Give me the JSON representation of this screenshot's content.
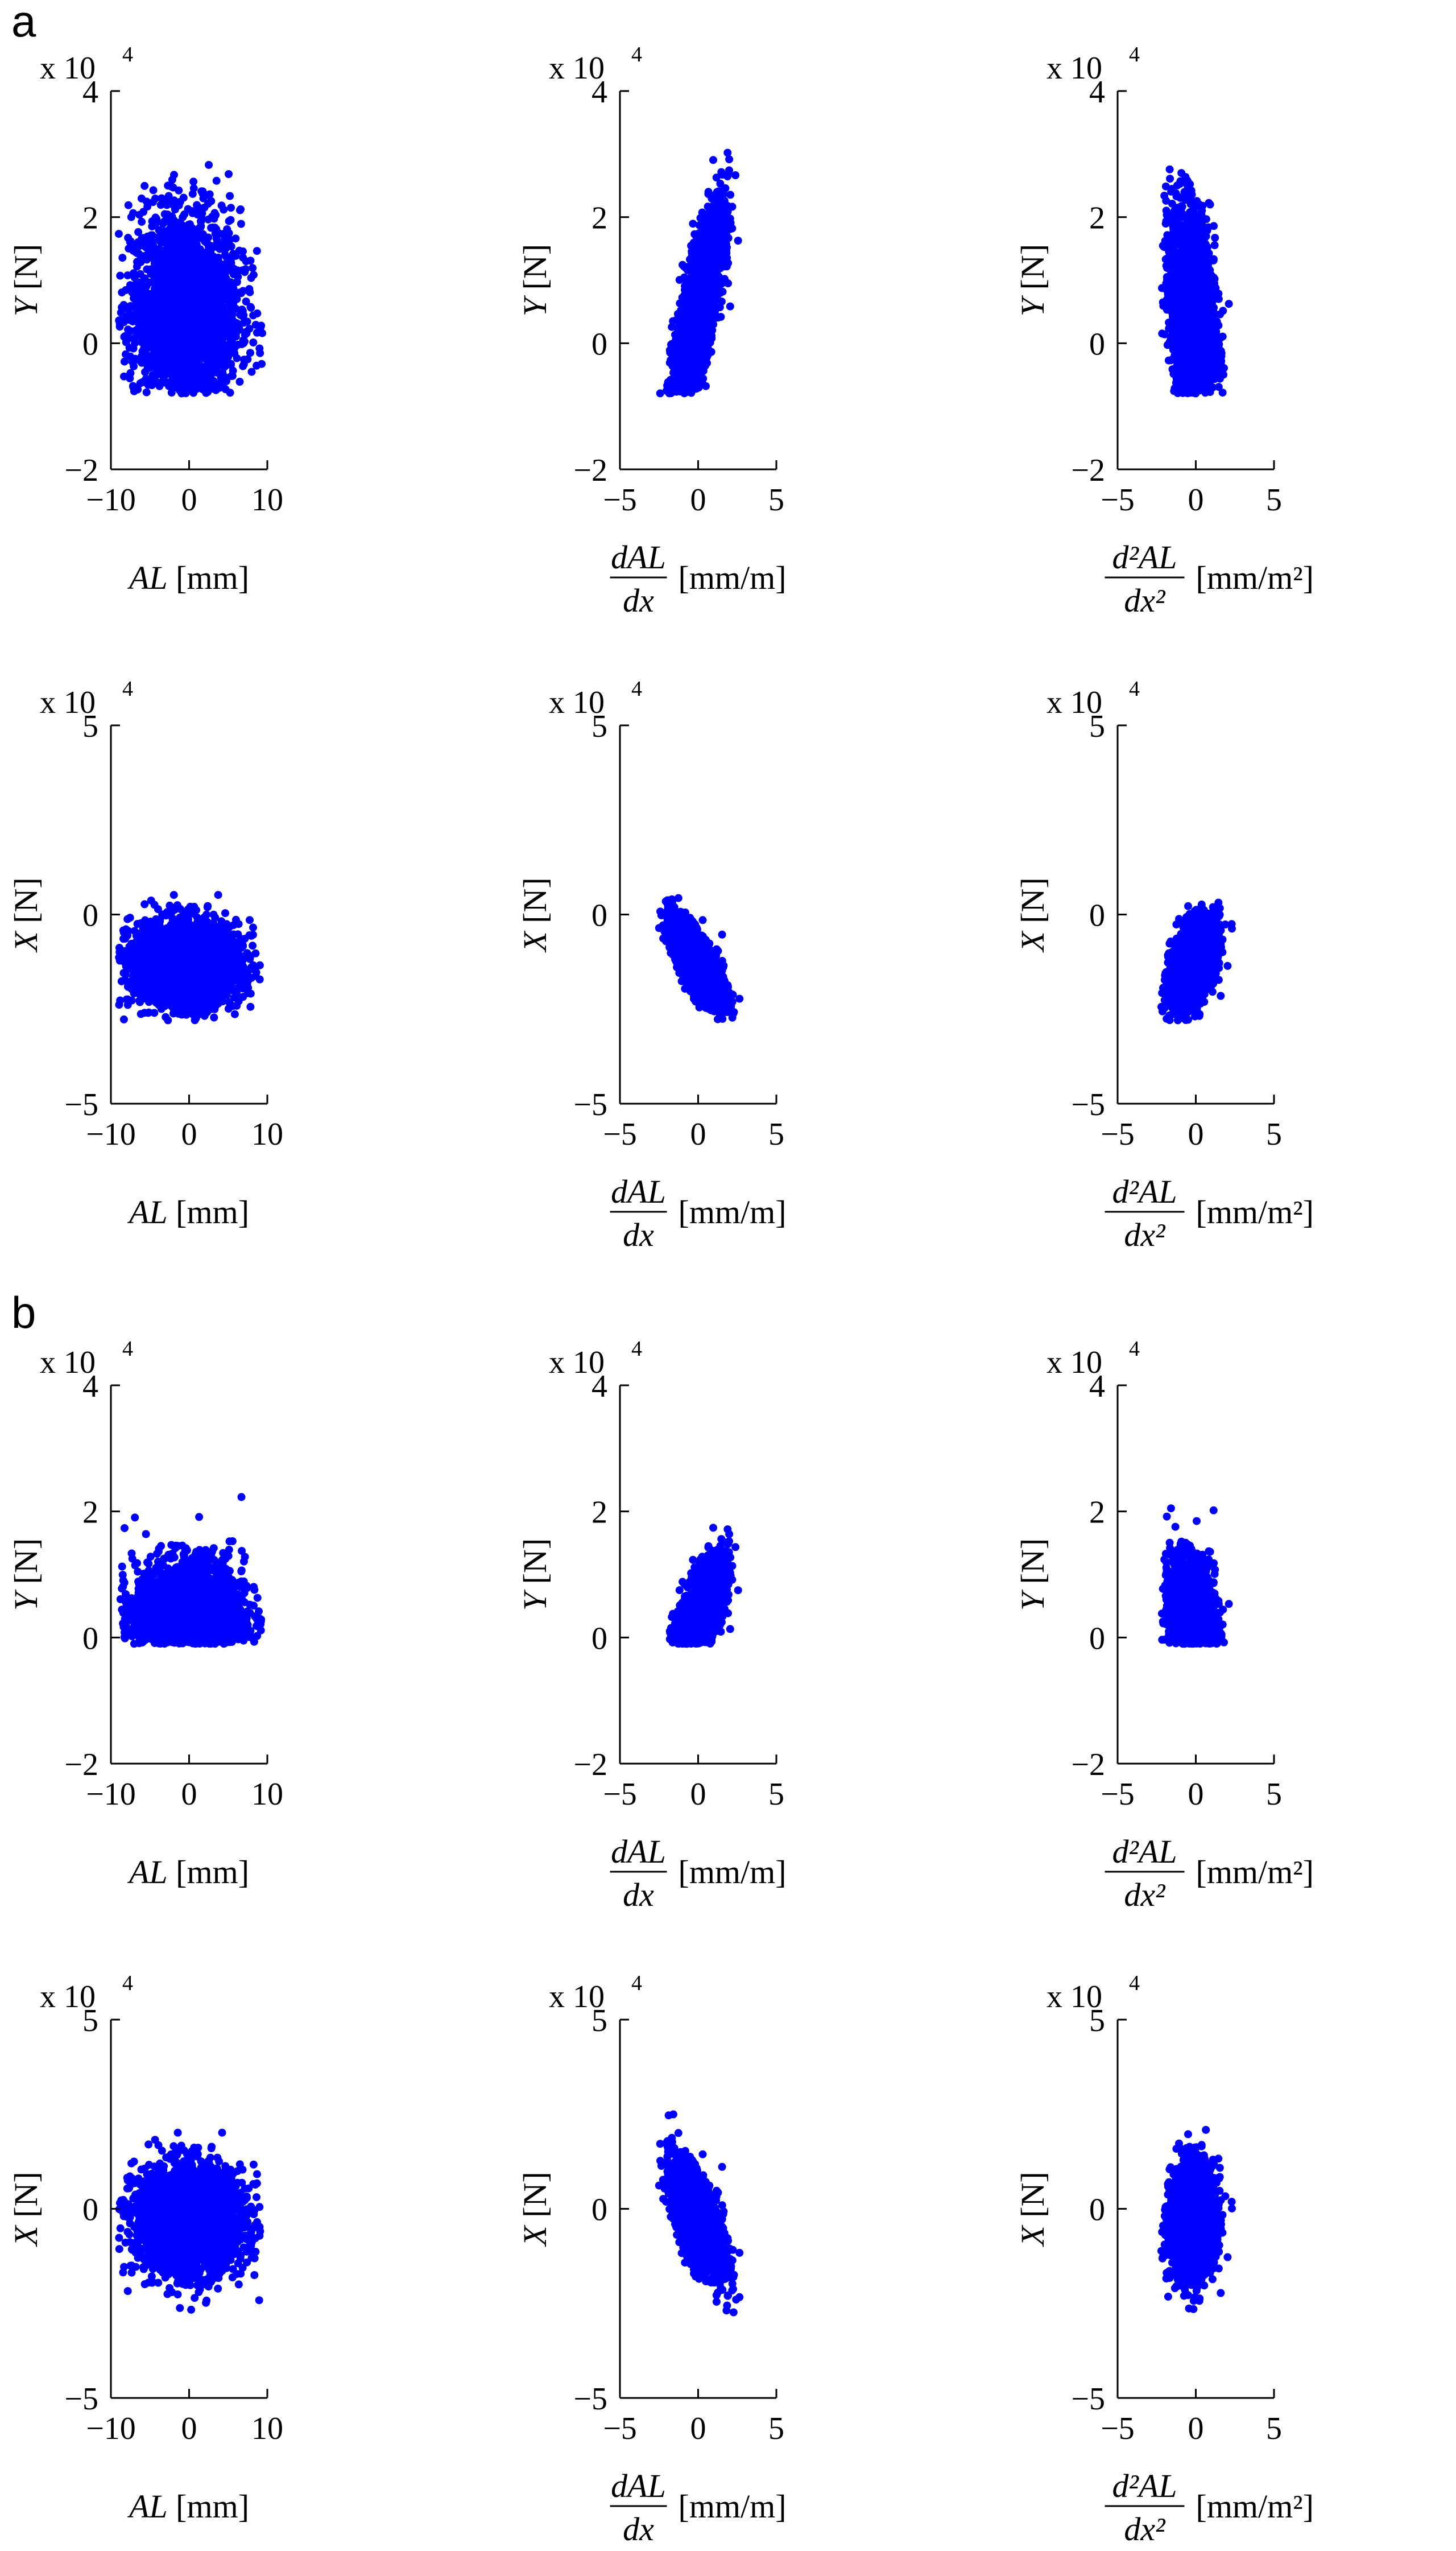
{
  "figure": {
    "panel_labels": [
      "a",
      "b"
    ],
    "multiplier_text": "x 10",
    "multiplier_exponent": "4"
  },
  "chart_data": [
    {
      "id": "a-Y-AL",
      "panel": "a",
      "type": "scatter",
      "color": "#0000ff",
      "ylabel": "Y [N]",
      "xlabel": "AL [mm]",
      "xlim": [
        -10,
        10
      ],
      "ylim": [
        -2,
        4
      ],
      "xticks": [
        "−10",
        "0",
        "10"
      ],
      "yticks": [
        "−2",
        "0",
        "2",
        "4"
      ],
      "y_multiplier": "x 10^4",
      "points": {
        "x_center": -0.5,
        "x_spread": 3.5,
        "x_range": [
          -9,
          9.5
        ],
        "y_center": 0.5,
        "y_spread": 0.8,
        "y_range": [
          -0.8,
          3.1
        ],
        "corr": 0,
        "count": 2600
      }
    },
    {
      "id": "a-Y-dAL",
      "panel": "a",
      "type": "scatter",
      "color": "#0000ff",
      "ylabel": "Y [N]",
      "xlabel": "dAL/dx [mm/m]",
      "xlim": [
        -5,
        5
      ],
      "ylim": [
        -2,
        4
      ],
      "xticks": [
        "−5",
        "0",
        "5"
      ],
      "yticks": [
        "−2",
        "0",
        "2",
        "4"
      ],
      "y_multiplier": "x 10^4",
      "points": {
        "x_center": 0,
        "x_spread": 0.8,
        "x_range": [
          -2.6,
          2.8
        ],
        "y_center": 0.5,
        "y_spread": 0.8,
        "y_range": [
          -0.8,
          3.1
        ],
        "corr": 0.78,
        "count": 2600
      }
    },
    {
      "id": "a-Y-d2AL",
      "panel": "a",
      "type": "scatter",
      "color": "#0000ff",
      "ylabel": "Y [N]",
      "xlabel": "d²AL/dx² [mm/m²]",
      "xlim": [
        -5,
        5
      ],
      "ylim": [
        -2,
        4
      ],
      "xticks": [
        "−5",
        "0",
        "5"
      ],
      "yticks": [
        "−2",
        "0",
        "2",
        "4"
      ],
      "y_multiplier": "x 10^4",
      "points": {
        "x_center": -0.2,
        "x_spread": 0.7,
        "x_range": [
          -2.2,
          2.6
        ],
        "y_center": 0.5,
        "y_spread": 0.8,
        "y_range": [
          -0.8,
          3.1
        ],
        "corr": -0.3,
        "count": 2600
      }
    },
    {
      "id": "a-X-AL",
      "panel": "a",
      "type": "scatter",
      "color": "#0000ff",
      "ylabel": "X [N]",
      "xlabel": "AL [mm]",
      "xlim": [
        -10,
        10
      ],
      "ylim": [
        -5,
        5
      ],
      "xticks": [
        "−10",
        "0",
        "10"
      ],
      "yticks": [
        "−5",
        "0",
        "5"
      ],
      "y_multiplier": "x 10^4",
      "points": {
        "x_center": -0.5,
        "x_spread": 3.5,
        "x_range": [
          -9,
          9.5
        ],
        "y_center": -1.3,
        "y_spread": 0.55,
        "y_range": [
          -2.8,
          0.6
        ],
        "corr": 0,
        "count": 2600
      }
    },
    {
      "id": "a-X-dAL",
      "panel": "a",
      "type": "scatter",
      "color": "#0000ff",
      "ylabel": "X [N]",
      "xlabel": "dAL/dx [mm/m]",
      "xlim": [
        -5,
        5
      ],
      "ylim": [
        -5,
        5
      ],
      "xticks": [
        "−5",
        "0",
        "5"
      ],
      "yticks": [
        "−5",
        "0",
        "5"
      ],
      "y_multiplier": "x 10^4",
      "points": {
        "x_center": 0,
        "x_spread": 0.8,
        "x_range": [
          -2.6,
          2.8
        ],
        "y_center": -1.3,
        "y_spread": 0.55,
        "y_range": [
          -2.8,
          0.6
        ],
        "corr": -0.75,
        "count": 2600
      }
    },
    {
      "id": "a-X-d2AL",
      "panel": "a",
      "type": "scatter",
      "color": "#0000ff",
      "ylabel": "X [N]",
      "xlabel": "d²AL/dx² [mm/m²]",
      "xlim": [
        -5,
        5
      ],
      "ylim": [
        -5,
        5
      ],
      "xticks": [
        "−5",
        "0",
        "5"
      ],
      "yticks": [
        "−5",
        "0",
        "5"
      ],
      "y_multiplier": "x 10^4",
      "points": {
        "x_center": -0.2,
        "x_spread": 0.7,
        "x_range": [
          -2.2,
          2.6
        ],
        "y_center": -1.3,
        "y_spread": 0.55,
        "y_range": [
          -2.8,
          0.6
        ],
        "corr": 0.45,
        "count": 2600
      }
    },
    {
      "id": "b-Y-AL",
      "panel": "b",
      "type": "scatter",
      "color": "#0000ff",
      "ylabel": "Y [N]",
      "xlabel": "AL [mm]",
      "xlim": [
        -10,
        10
      ],
      "ylim": [
        -2,
        4
      ],
      "xticks": [
        "−10",
        "0",
        "10"
      ],
      "yticks": [
        "−2",
        "0",
        "2",
        "4"
      ],
      "y_multiplier": "x 10^4",
      "points": {
        "x_center": 0,
        "x_spread": 3.5,
        "x_range": [
          -9,
          9.5
        ],
        "y_center": 0.3,
        "y_spread": 0.45,
        "y_range": [
          -0.1,
          2.6
        ],
        "corr": 0,
        "count": 2600
      }
    },
    {
      "id": "b-Y-dAL",
      "panel": "b",
      "type": "scatter",
      "color": "#0000ff",
      "ylabel": "Y [N]",
      "xlabel": "dAL/dx [mm/m]",
      "xlim": [
        -5,
        5
      ],
      "ylim": [
        -2,
        4
      ],
      "xticks": [
        "−5",
        "0",
        "5"
      ],
      "yticks": [
        "−2",
        "0",
        "2",
        "4"
      ],
      "y_multiplier": "x 10^4",
      "points": {
        "x_center": 0,
        "x_spread": 0.8,
        "x_range": [
          -2.6,
          2.8
        ],
        "y_center": 0.3,
        "y_spread": 0.45,
        "y_range": [
          -0.1,
          2.6
        ],
        "corr": 0.7,
        "count": 2600
      }
    },
    {
      "id": "b-Y-d2AL",
      "panel": "b",
      "type": "scatter",
      "color": "#0000ff",
      "ylabel": "Y [N]",
      "xlabel": "d²AL/dx² [mm/m²]",
      "xlim": [
        -5,
        5
      ],
      "ylim": [
        -2,
        4
      ],
      "xticks": [
        "−5",
        "0",
        "5"
      ],
      "yticks": [
        "−2",
        "0",
        "2",
        "4"
      ],
      "y_multiplier": "x 10^4",
      "points": {
        "x_center": -0.2,
        "x_spread": 0.7,
        "x_range": [
          -2.2,
          2.6
        ],
        "y_center": 0.3,
        "y_spread": 0.45,
        "y_range": [
          -0.1,
          2.6
        ],
        "corr": -0.2,
        "count": 2600
      }
    },
    {
      "id": "b-X-AL",
      "panel": "b",
      "type": "scatter",
      "color": "#0000ff",
      "ylabel": "X [N]",
      "xlabel": "AL [mm]",
      "xlim": [
        -10,
        10
      ],
      "ylim": [
        -5,
        5
      ],
      "xticks": [
        "−10",
        "0",
        "10"
      ],
      "yticks": [
        "−5",
        "0",
        "5"
      ],
      "y_multiplier": "x 10^4",
      "points": {
        "x_center": 0,
        "x_spread": 3.5,
        "x_range": [
          -9,
          9.5
        ],
        "y_center": -0.3,
        "y_spread": 0.7,
        "y_range": [
          -2.8,
          2.5
        ],
        "corr": 0,
        "count": 2600
      }
    },
    {
      "id": "b-X-dAL",
      "panel": "b",
      "type": "scatter",
      "color": "#0000ff",
      "ylabel": "X [N]",
      "xlabel": "dAL/dx [mm/m]",
      "xlim": [
        -5,
        5
      ],
      "ylim": [
        -5,
        5
      ],
      "xticks": [
        "−5",
        "0",
        "5"
      ],
      "yticks": [
        "−5",
        "0",
        "5"
      ],
      "y_multiplier": "x 10^4",
      "points": {
        "x_center": 0,
        "x_spread": 0.8,
        "x_range": [
          -2.6,
          2.8
        ],
        "y_center": -0.3,
        "y_spread": 0.7,
        "y_range": [
          -2.8,
          2.5
        ],
        "corr": -0.65,
        "count": 2600
      }
    },
    {
      "id": "b-X-d2AL",
      "panel": "b",
      "type": "scatter",
      "color": "#0000ff",
      "ylabel": "X [N]",
      "xlabel": "d²AL/dx² [mm/m²]",
      "xlim": [
        -5,
        5
      ],
      "ylim": [
        -5,
        5
      ],
      "xticks": [
        "−5",
        "0",
        "5"
      ],
      "yticks": [
        "−5",
        "0",
        "5"
      ],
      "y_multiplier": "x 10^4",
      "points": {
        "x_center": -0.2,
        "x_spread": 0.7,
        "x_range": [
          -2.2,
          2.6
        ],
        "y_center": -0.3,
        "y_spread": 0.7,
        "y_range": [
          -2.8,
          2.5
        ],
        "corr": 0.1,
        "count": 2600
      }
    }
  ]
}
